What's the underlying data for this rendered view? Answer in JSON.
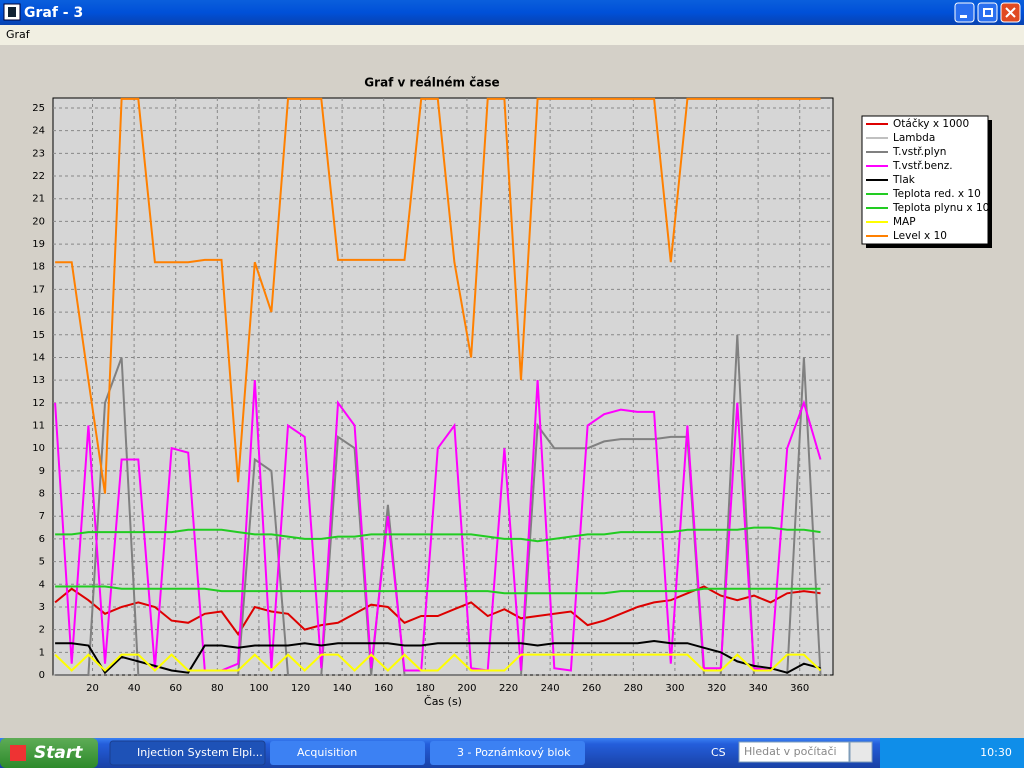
{
  "window": {
    "title": "Graf - 3",
    "menu": [
      "Graf"
    ]
  },
  "taskbar": {
    "start": "Start",
    "tasks": [
      "Injection System Elpi...",
      "Acquisition",
      "3 - Poznámkový blok"
    ],
    "language": "CS",
    "search": "Hledat v počítači",
    "clock": "10:30"
  },
  "chart_data": {
    "type": "line",
    "title": "Graf v reálném čase",
    "x_label": "Čas (s)",
    "xlim": [
      1,
      376
    ],
    "ylim": [
      0,
      25.44
    ],
    "xticks": [
      20,
      40,
      60,
      80,
      100,
      120,
      140,
      160,
      180,
      200,
      220,
      240,
      260,
      280,
      300,
      320,
      340,
      360
    ],
    "yticks": [
      0,
      1,
      2,
      3,
      4,
      5,
      6,
      7,
      8,
      9,
      10,
      11,
      12,
      13,
      14,
      15,
      16,
      17,
      18,
      19,
      20,
      21,
      22,
      23,
      24,
      25
    ],
    "grid": true,
    "legend": "right",
    "x": [
      2,
      10,
      18,
      26,
      34,
      42,
      50,
      58,
      66,
      74,
      82,
      90,
      98,
      106,
      114,
      122,
      130,
      138,
      146,
      154,
      162,
      170,
      178,
      186,
      194,
      202,
      210,
      218,
      226,
      234,
      242,
      250,
      258,
      266,
      274,
      282,
      290,
      298,
      306,
      314,
      322,
      330,
      338,
      346,
      354,
      362,
      370
    ],
    "series": [
      {
        "name": "Otáčky x 1000",
        "color": "#dd0000",
        "values": [
          3.2,
          3.8,
          3.3,
          2.7,
          3.0,
          3.2,
          3.0,
          2.4,
          2.3,
          2.7,
          2.8,
          1.8,
          3.0,
          2.8,
          2.7,
          2.0,
          2.2,
          2.3,
          2.7,
          3.1,
          3.0,
          2.3,
          2.6,
          2.6,
          2.9,
          3.2,
          2.6,
          2.9,
          2.5,
          2.6,
          2.7,
          2.8,
          2.2,
          2.4,
          2.7,
          3.0,
          3.2,
          3.3,
          3.6,
          3.9,
          3.5,
          3.3,
          3.5,
          3.2,
          3.6,
          3.7,
          3.6
        ]
      },
      {
        "name": "Lambda",
        "color": "#c0c0c0",
        "values": [
          null,
          null,
          null,
          null,
          null,
          null,
          null,
          null,
          null,
          null,
          null,
          null,
          null,
          null,
          null,
          null,
          null,
          null,
          null,
          null,
          null,
          null,
          null,
          null,
          null,
          null,
          null,
          null,
          null,
          null,
          null,
          null,
          null,
          null,
          null,
          null,
          null,
          null,
          null,
          null,
          null,
          null,
          null,
          null,
          null,
          null,
          null
        ]
      },
      {
        "name": "T.vstř.plyn",
        "color": "#808080",
        "values": [
          0,
          0,
          0,
          12,
          14,
          0,
          0,
          0,
          0,
          0,
          0,
          0,
          9.5,
          9,
          0,
          0,
          0,
          10.5,
          10,
          0,
          7.5,
          0,
          0,
          0,
          0,
          0,
          0,
          0,
          0,
          11,
          10,
          10,
          10,
          10.3,
          10.4,
          10.4,
          10.4,
          10.5,
          10.5,
          0,
          0,
          15,
          0,
          0,
          0,
          14,
          0
        ]
      },
      {
        "name": "T.vstř.benz.",
        "color": "#ff00ff",
        "values": [
          12,
          0.5,
          11,
          0.5,
          9.5,
          9.5,
          0.3,
          10,
          9.8,
          0.2,
          0.2,
          0.5,
          13,
          0.3,
          11,
          10.5,
          0.3,
          12,
          11,
          0.3,
          7,
          0.2,
          0.2,
          10,
          11,
          0.3,
          0.2,
          10,
          0.2,
          13,
          0.3,
          0.2,
          11,
          11.5,
          11.7,
          11.6,
          11.6,
          0.5,
          11,
          0.3,
          0.3,
          12,
          0.3,
          0.2,
          10,
          12,
          9.5
        ]
      },
      {
        "name": "Tlak",
        "color": "#000000",
        "values": [
          1.4,
          1.4,
          1.3,
          0.1,
          0.8,
          0.6,
          0.4,
          0.2,
          0.1,
          1.3,
          1.3,
          1.2,
          1.3,
          1.3,
          1.3,
          1.4,
          1.3,
          1.4,
          1.4,
          1.4,
          1.4,
          1.3,
          1.3,
          1.4,
          1.4,
          1.4,
          1.4,
          1.4,
          1.4,
          1.3,
          1.4,
          1.4,
          1.4,
          1.4,
          1.4,
          1.4,
          1.5,
          1.4,
          1.4,
          1.2,
          1.0,
          0.6,
          0.4,
          0.3,
          0.1,
          0.5,
          0.3
        ]
      },
      {
        "name": "Teplota red. x 10",
        "color": "#22cc22",
        "values": [
          6.2,
          6.2,
          6.3,
          6.3,
          6.3,
          6.3,
          6.3,
          6.3,
          6.4,
          6.4,
          6.4,
          6.3,
          6.2,
          6.2,
          6.1,
          6.0,
          6.0,
          6.1,
          6.1,
          6.2,
          6.2,
          6.2,
          6.2,
          6.2,
          6.2,
          6.2,
          6.1,
          6.0,
          6.0,
          5.9,
          6.0,
          6.1,
          6.2,
          6.2,
          6.3,
          6.3,
          6.3,
          6.3,
          6.4,
          6.4,
          6.4,
          6.4,
          6.5,
          6.5,
          6.4,
          6.4,
          6.3
        ]
      },
      {
        "name": "Teplota plynu x 10",
        "color": "#22cc22",
        "values": [
          3.9,
          3.9,
          3.9,
          3.9,
          3.8,
          3.8,
          3.8,
          3.8,
          3.8,
          3.8,
          3.7,
          3.7,
          3.7,
          3.7,
          3.7,
          3.7,
          3.7,
          3.7,
          3.7,
          3.7,
          3.7,
          3.7,
          3.7,
          3.7,
          3.7,
          3.7,
          3.7,
          3.6,
          3.6,
          3.6,
          3.6,
          3.6,
          3.6,
          3.6,
          3.7,
          3.7,
          3.7,
          3.7,
          3.7,
          3.8,
          3.8,
          3.8,
          3.8,
          3.8,
          3.8,
          3.8,
          3.8
        ]
      },
      {
        "name": "MAP",
        "color": "#ffff00",
        "values": [
          0.9,
          0.2,
          0.9,
          0.2,
          0.9,
          0.9,
          0.2,
          0.9,
          0.2,
          0.2,
          0.2,
          0.2,
          0.9,
          0.2,
          0.9,
          0.2,
          0.9,
          0.9,
          0.2,
          0.9,
          0.2,
          0.9,
          0.2,
          0.2,
          0.9,
          0.2,
          0.2,
          0.2,
          0.9,
          0.9,
          0.9,
          0.9,
          0.9,
          0.9,
          0.9,
          0.9,
          0.9,
          0.9,
          0.9,
          0.2,
          0.2,
          0.9,
          0.2,
          0.2,
          0.9,
          0.9,
          0.2
        ]
      },
      {
        "name": "Level x 10",
        "color": "#ff8000",
        "values": [
          18.2,
          18.2,
          13,
          8,
          25.4,
          25.4,
          18.2,
          18.2,
          18.2,
          18.3,
          18.3,
          8.5,
          18.2,
          16,
          25.4,
          25.4,
          25.4,
          18.3,
          18.3,
          18.3,
          18.3,
          18.3,
          25.4,
          25.4,
          18.2,
          14,
          25.4,
          25.4,
          13,
          25.4,
          25.4,
          25.4,
          25.4,
          25.4,
          25.4,
          25.4,
          25.4,
          18.2,
          25.4,
          25.4,
          25.4,
          25.4,
          25.4,
          25.4,
          25.4,
          25.4,
          25.4
        ]
      }
    ]
  }
}
